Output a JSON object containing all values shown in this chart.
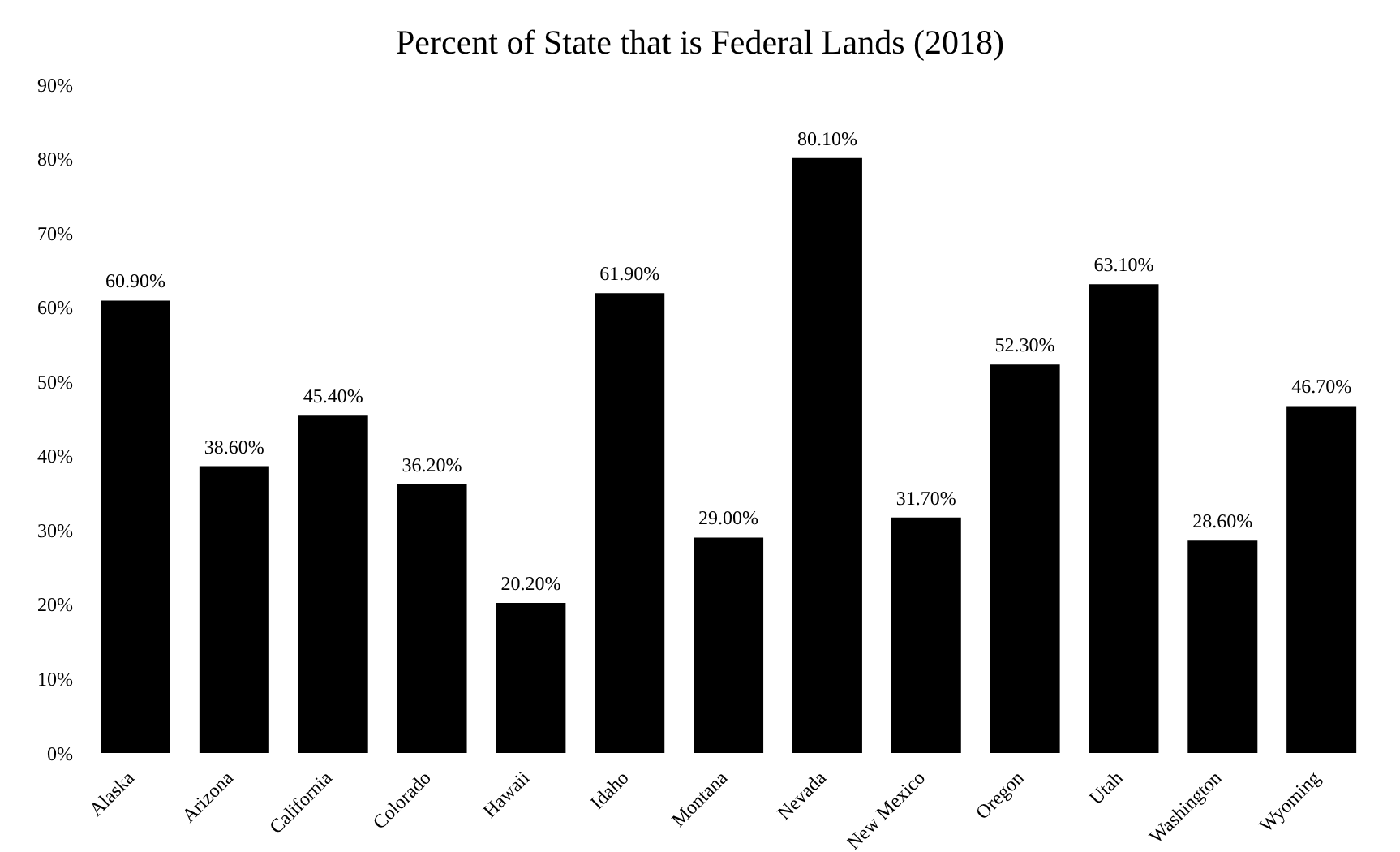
{
  "chart_data": {
    "type": "bar",
    "title": "Percent of State that is Federal Lands (2018)",
    "categories": [
      "Alaska",
      "Arizona",
      "California",
      "Colorado",
      "Hawaii",
      "Idaho",
      "Montana",
      "Nevada",
      "New Mexico",
      "Oregon",
      "Utah",
      "Washington",
      "Wyoming"
    ],
    "values": [
      60.9,
      38.6,
      45.4,
      36.2,
      20.2,
      61.9,
      29.0,
      80.1,
      31.7,
      52.3,
      63.1,
      28.6,
      46.7
    ],
    "value_labels": [
      "60.90%",
      "38.60%",
      "45.40%",
      "36.20%",
      "20.20%",
      "61.90%",
      "29.00%",
      "80.10%",
      "31.70%",
      "52.30%",
      "63.10%",
      "28.60%",
      "46.70%"
    ],
    "color": "#000000",
    "ylim": [
      0,
      90
    ],
    "yticks": [
      {
        "value": 0,
        "label": "0%"
      },
      {
        "value": 10,
        "label": "10%"
      },
      {
        "value": 20,
        "label": "20%"
      },
      {
        "value": 30,
        "label": "30%"
      },
      {
        "value": 40,
        "label": "40%"
      },
      {
        "value": 50,
        "label": "50%"
      },
      {
        "value": 60,
        "label": "60%"
      },
      {
        "value": 70,
        "label": "70%"
      },
      {
        "value": 80,
        "label": "80%"
      },
      {
        "value": 90,
        "label": "90%"
      }
    ],
    "grid": false,
    "legend": false
  }
}
